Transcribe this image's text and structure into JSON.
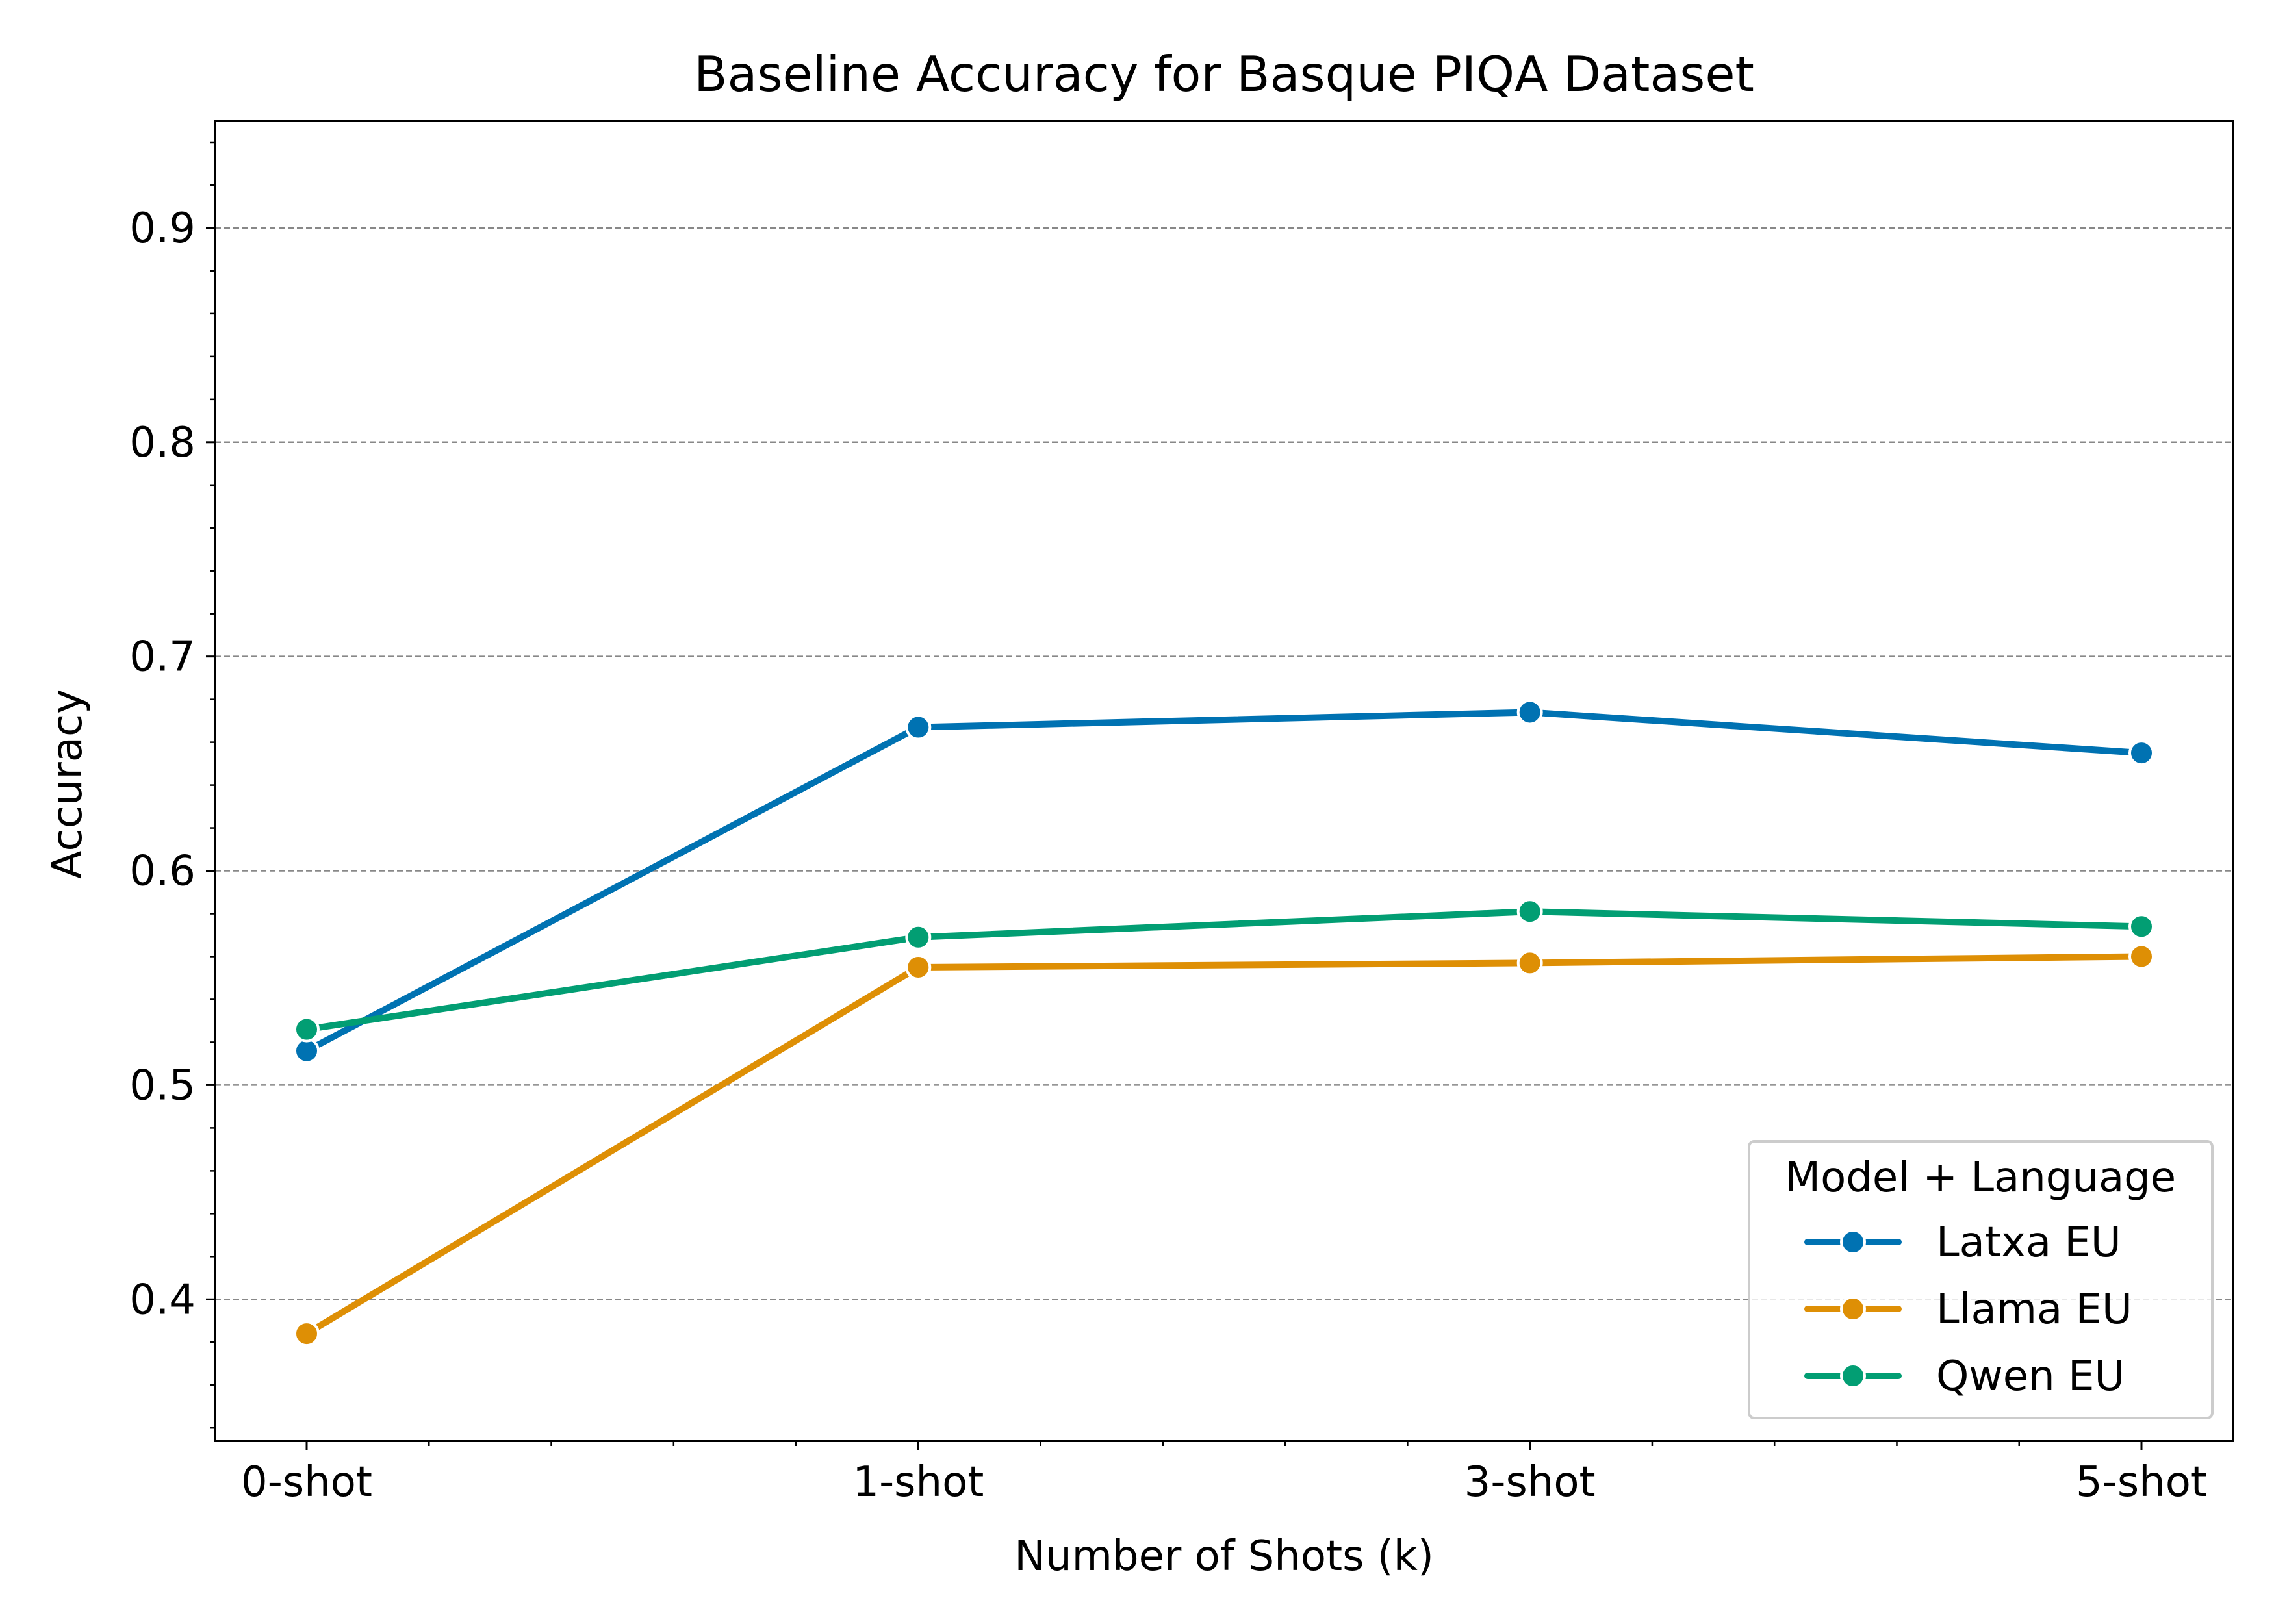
{
  "chart_data": {
    "type": "line",
    "title": "Baseline Accuracy for Basque PIQA Dataset",
    "xlabel": "Number of Shots (k)",
    "ylabel": "Accuracy",
    "categories": [
      "0-shot",
      "1-shot",
      "3-shot",
      "5-shot"
    ],
    "ylim": [
      0.334,
      0.95
    ],
    "yticks": [
      0.4,
      0.5,
      0.6,
      0.7,
      0.8,
      0.9
    ],
    "ytick_labels": [
      "0.4",
      "0.5",
      "0.6",
      "0.7",
      "0.8",
      "0.9"
    ],
    "grid": "horizontal dashed",
    "legend": {
      "title": "Model + Language",
      "placement": "bottom-right"
    },
    "series": [
      {
        "name": "Latxa EU",
        "color": "#0072b2",
        "values": [
          0.516,
          0.667,
          0.674,
          0.655
        ]
      },
      {
        "name": "Llama EU",
        "color": "#de8f05",
        "values": [
          0.384,
          0.555,
          0.557,
          0.56
        ]
      },
      {
        "name": "Qwen EU",
        "color": "#029e73",
        "values": [
          0.526,
          0.569,
          0.581,
          0.574
        ]
      }
    ]
  }
}
